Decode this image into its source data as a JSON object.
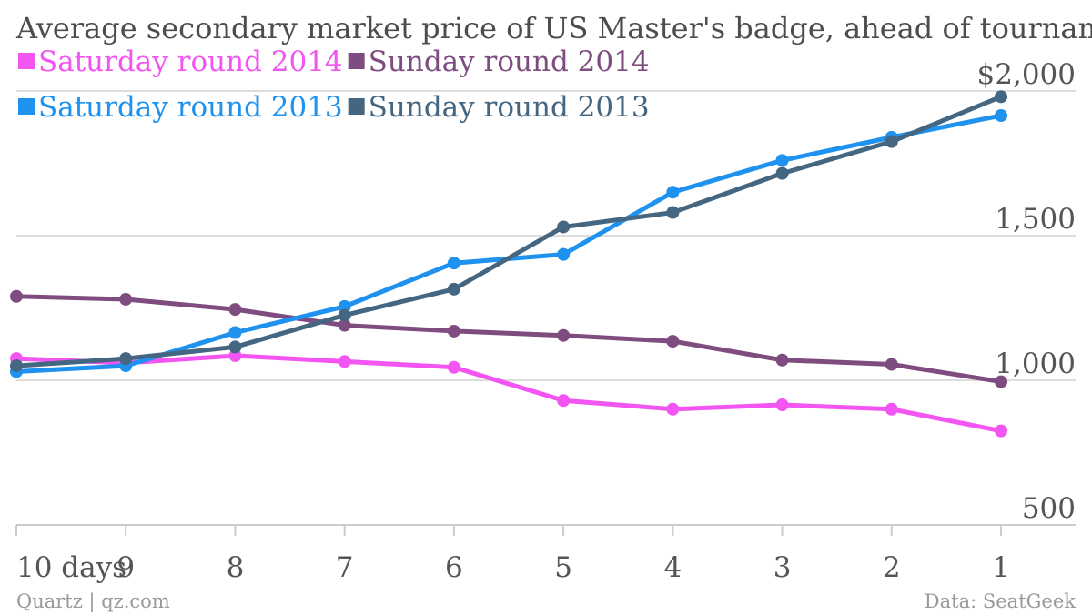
{
  "chart_data": {
    "type": "line",
    "title": "Average secondary market price of US Master's badge, ahead of tournament",
    "categories": [
      "10 days",
      "9",
      "8",
      "7",
      "6",
      "5",
      "4",
      "3",
      "2",
      "1"
    ],
    "y_tick_labels": [
      "$2,000",
      "1,500",
      "1,000",
      "500"
    ],
    "y_ticks": [
      2000,
      1500,
      1000,
      500
    ],
    "ylim": [
      500,
      2000
    ],
    "grid": true,
    "legend_position": "top-left",
    "series": [
      {
        "name": "Saturday round 2014",
        "color": "#f255f2",
        "values": [
          1075,
          1060,
          1085,
          1065,
          1045,
          930,
          900,
          915,
          900,
          825
        ]
      },
      {
        "name": "Sunday round 2014",
        "color": "#7f4c80",
        "values": [
          1290,
          1280,
          1245,
          1190,
          1170,
          1155,
          1135,
          1070,
          1055,
          995
        ]
      },
      {
        "name": "Saturday round 2013",
        "color": "#1e92ee",
        "values": [
          1030,
          1050,
          1165,
          1255,
          1405,
          1435,
          1650,
          1760,
          1840,
          1915
        ]
      },
      {
        "name": "Sunday round 2013",
        "color": "#456680",
        "values": [
          1050,
          1075,
          1115,
          1225,
          1315,
          1530,
          1580,
          1715,
          1825,
          1980
        ]
      }
    ]
  },
  "footer": {
    "source_left": "Quartz | qz.com",
    "source_right": "Data: SeatGeek"
  }
}
